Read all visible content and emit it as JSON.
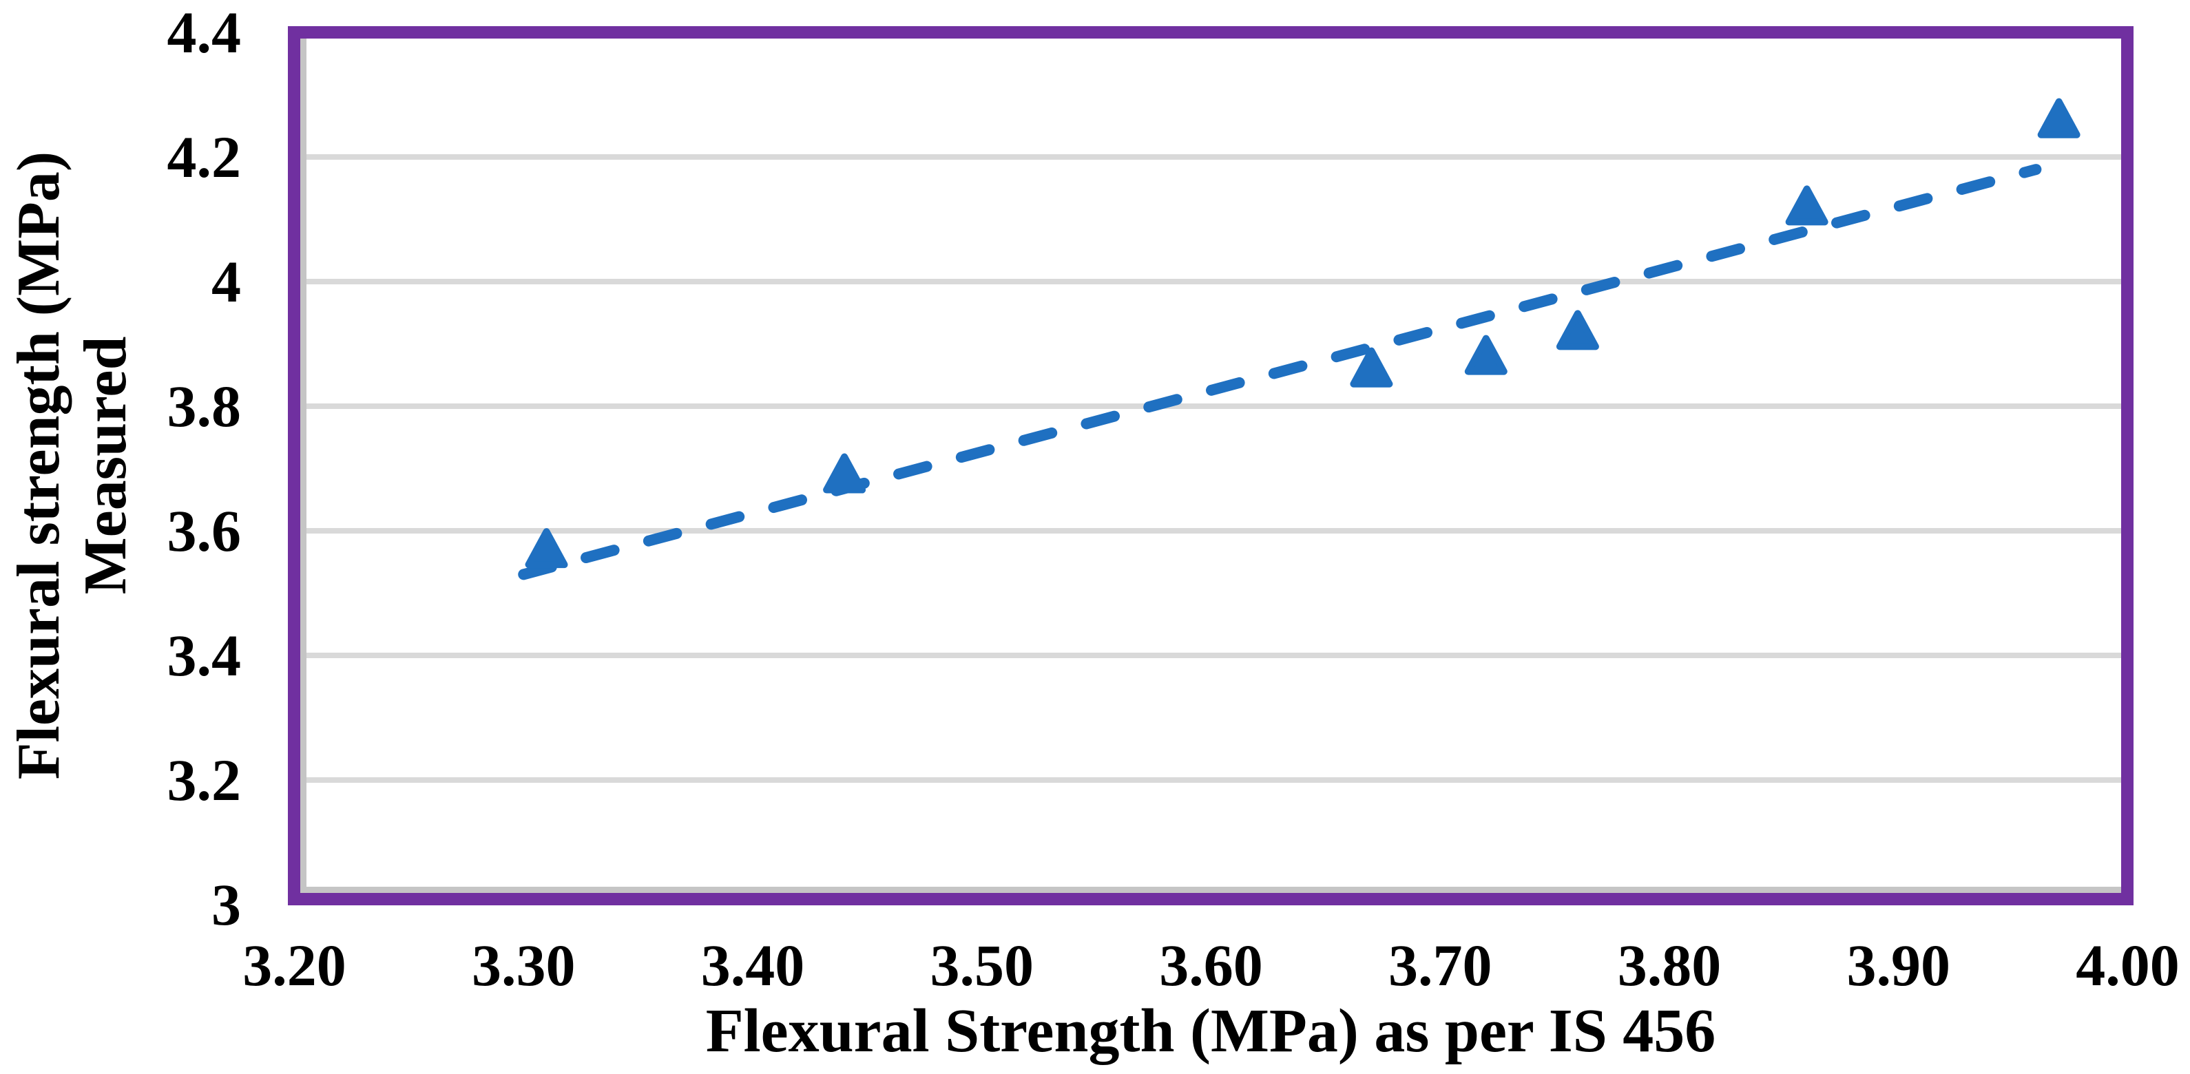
{
  "chart_data": {
    "type": "scatter",
    "title": "",
    "xlabel": "Flexural Strength (MPa) as per IS 456",
    "ylabel_line1": "Flexural strength (MPa)",
    "ylabel_line2": "Measured",
    "xlim": [
      3.2,
      4.0
    ],
    "ylim": [
      3.0,
      4.4
    ],
    "x_tick_values": [
      3.2,
      3.3,
      3.4,
      3.5,
      3.6,
      3.7,
      3.8,
      3.9,
      4.0
    ],
    "x_ticks": [
      "3.20",
      "3.30",
      "3.40",
      "3.50",
      "3.60",
      "3.70",
      "3.80",
      "3.90",
      "4.00"
    ],
    "y_tick_values": [
      4.4,
      4.2,
      4.0,
      3.8,
      3.6,
      3.4,
      3.2,
      3.0
    ],
    "y_ticks": [
      "4.4",
      "4.2",
      "4",
      "3.8",
      "3.6",
      "3.4",
      "3.2",
      "3"
    ],
    "grid": "horizontal",
    "legend": "none",
    "marker": "triangle-up",
    "points": [
      {
        "x": 3.31,
        "y": 3.57
      },
      {
        "x": 3.44,
        "y": 3.69
      },
      {
        "x": 3.67,
        "y": 3.86
      },
      {
        "x": 3.72,
        "y": 3.88
      },
      {
        "x": 3.76,
        "y": 3.92
      },
      {
        "x": 3.86,
        "y": 4.12
      },
      {
        "x": 3.97,
        "y": 4.26
      }
    ],
    "trendline": {
      "style": "dashed",
      "x1": 3.3,
      "y1": 3.53,
      "x2": 3.96,
      "y2": 4.18
    },
    "colors": {
      "series": "#1F70C1",
      "plot_border": "#7030A0",
      "border_shadow": "#C5C5C5",
      "gridline": "#D9D9D9",
      "text": "#000000",
      "background": "#FFFFFF"
    }
  }
}
